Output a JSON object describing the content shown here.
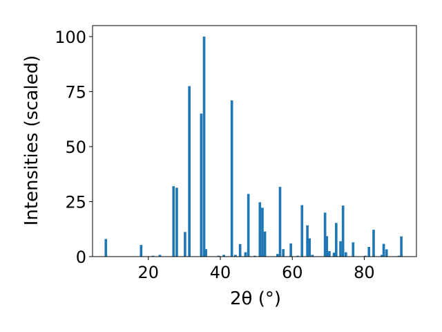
{
  "chart_data": {
    "type": "bar",
    "title": "",
    "xlabel": "2θ (°)",
    "ylabel": "Intensities (scaled)",
    "xlim": [
      4.5,
      94.5
    ],
    "ylim": [
      0,
      105
    ],
    "xticks": [
      20,
      40,
      60,
      80
    ],
    "yticks": [
      0,
      25,
      50,
      75,
      100
    ],
    "grid": false,
    "bar_width": 0.7,
    "color": "#1f77b4",
    "x": [
      8.2,
      18.0,
      21.3,
      23.2,
      27.0,
      27.9,
      30.2,
      31.4,
      34.7,
      35.5,
      36.0,
      39.5,
      41.0,
      43.2,
      44.2,
      45.5,
      47.0,
      47.8,
      49.6,
      51.0,
      51.7,
      52.4,
      55.9,
      56.6,
      57.5,
      59.6,
      61.5,
      62.7,
      64.2,
      64.8,
      65.6,
      69.1,
      69.6,
      70.3,
      71.6,
      72.2,
      73.4,
      74.1,
      74.9,
      76.9,
      80.3,
      81.3,
      82.6,
      84.9,
      85.4,
      86.2,
      89.6,
      90.3
    ],
    "values": [
      8,
      5.3,
      0.4,
      0.8,
      32,
      31.3,
      11.2,
      77.5,
      65,
      100,
      3.4,
      0.4,
      0.8,
      71,
      0.8,
      5.7,
      2,
      28.5,
      0.4,
      24.7,
      22.2,
      11.4,
      1.2,
      31.7,
      3.4,
      6,
      0.4,
      23.4,
      14.2,
      8.3,
      0.8,
      20,
      9.3,
      2.5,
      1.8,
      15.3,
      7,
      23.2,
      2,
      6.5,
      0.4,
      4.4,
      12.2,
      0.8,
      5.8,
      3.3,
      0.4,
      9.2
    ]
  }
}
